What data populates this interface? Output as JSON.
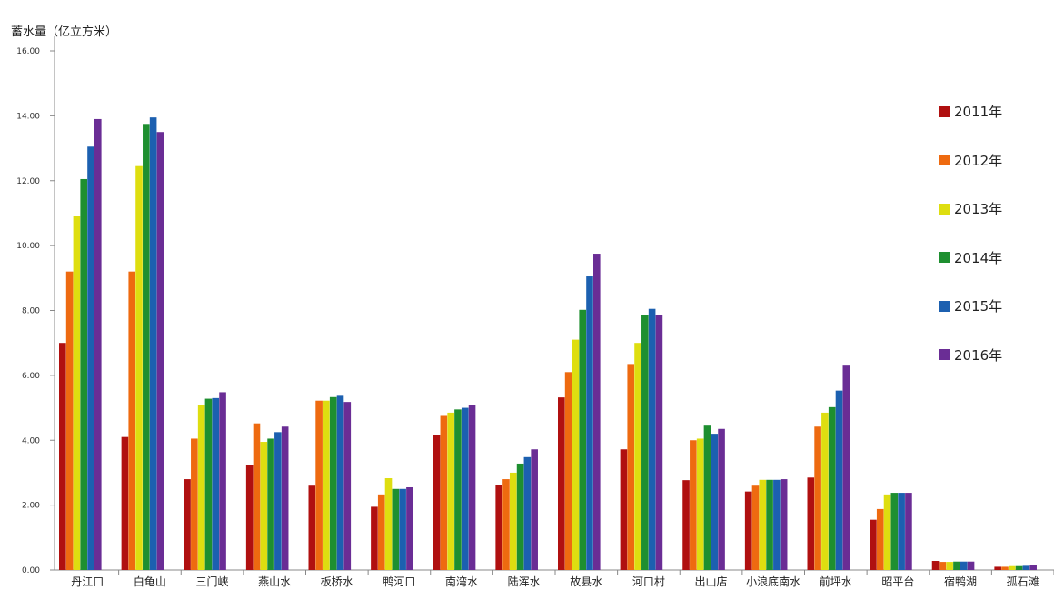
{
  "chart_data": {
    "type": "bar",
    "title": "",
    "xlabel": "",
    "ylabel": "蓄水量（亿立方米）",
    "ylim": [
      0,
      16
    ],
    "yticks": [
      "0.00",
      "2.00",
      "4.00",
      "6.00",
      "8.00",
      "10.00",
      "12.00",
      "14.00",
      "16.00"
    ],
    "grid": false,
    "legend_position": "right",
    "categories": [
      "丹江口",
      "白龟山",
      "三门峡",
      "燕山水",
      "板桥水",
      "鸭河口",
      "南湾水",
      "陆浑水",
      "故县水",
      "河口村",
      "出山店",
      "小浪底南水",
      "前坪水",
      "昭平台",
      "宿鸭湖",
      "孤石滩"
    ],
    "series": [
      {
        "name": "2011年",
        "color": "#b01010",
        "values": [
          7.0,
          4.1,
          2.8,
          3.25,
          2.6,
          1.95,
          4.15,
          2.63,
          5.32,
          3.72,
          2.77,
          2.42,
          2.85,
          1.55,
          0.28,
          0.1
        ]
      },
      {
        "name": "2012年",
        "color": "#ee6a10",
        "values": [
          9.2,
          9.2,
          4.05,
          4.52,
          5.22,
          2.33,
          4.75,
          2.8,
          6.1,
          6.35,
          4.0,
          2.6,
          4.42,
          1.88,
          0.25,
          0.1
        ]
      },
      {
        "name": "2013年",
        "color": "#dede10",
        "values": [
          10.9,
          12.45,
          5.1,
          3.95,
          5.22,
          2.83,
          4.85,
          3.0,
          7.1,
          7.0,
          4.05,
          2.78,
          4.85,
          2.33,
          0.25,
          0.12
        ]
      },
      {
        "name": "2014年",
        "color": "#1e8f30",
        "values": [
          12.05,
          13.75,
          5.28,
          4.05,
          5.33,
          2.5,
          4.95,
          3.28,
          8.02,
          7.85,
          4.45,
          2.78,
          5.02,
          2.38,
          0.26,
          0.12
        ]
      },
      {
        "name": "2015年",
        "color": "#1c60b0",
        "values": [
          13.05,
          13.95,
          5.3,
          4.25,
          5.37,
          2.5,
          5.0,
          3.48,
          9.05,
          8.05,
          4.2,
          2.78,
          5.53,
          2.38,
          0.26,
          0.13
        ]
      },
      {
        "name": "2016年",
        "color": "#6a2d95",
        "values": [
          13.9,
          13.5,
          5.48,
          4.42,
          5.18,
          2.55,
          5.08,
          3.72,
          9.75,
          7.85,
          4.35,
          2.8,
          6.3,
          2.38,
          0.26,
          0.14
        ]
      }
    ]
  }
}
